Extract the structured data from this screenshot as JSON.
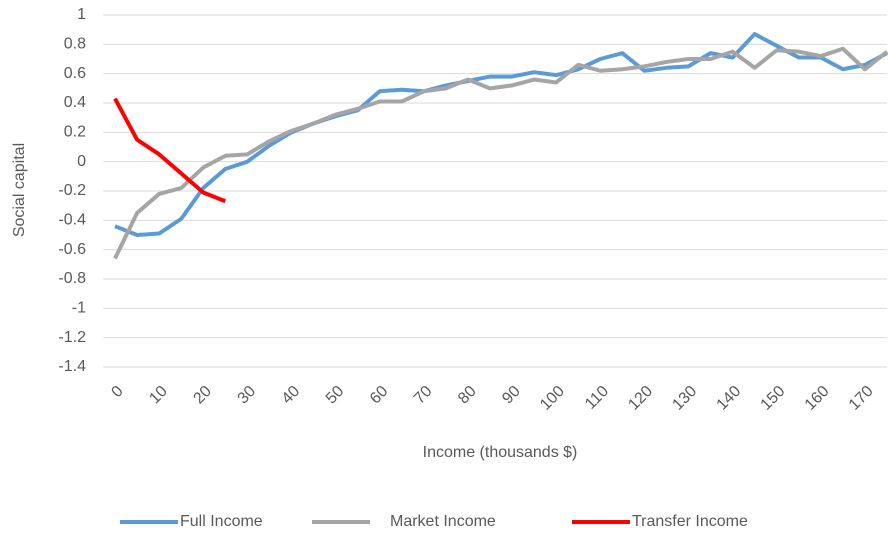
{
  "chart_data": {
    "type": "line",
    "x": [
      0,
      5,
      10,
      15,
      20,
      25,
      30,
      35,
      40,
      45,
      50,
      55,
      60,
      65,
      70,
      75,
      80,
      85,
      90,
      95,
      100,
      105,
      110,
      115,
      120,
      125,
      130,
      135,
      140,
      145,
      150,
      155,
      160,
      165,
      170,
      175
    ],
    "series": [
      {
        "name": "Full Income",
        "color": "#5b9bd5",
        "values": [
          -0.44,
          -0.5,
          -0.49,
          -0.39,
          -0.18,
          -0.05,
          0.0,
          0.11,
          0.2,
          0.26,
          0.31,
          0.35,
          0.48,
          0.49,
          0.48,
          0.52,
          0.55,
          0.58,
          0.58,
          0.61,
          0.59,
          0.63,
          0.7,
          0.74,
          0.62,
          0.64,
          0.65,
          0.74,
          0.71,
          0.87,
          0.79,
          0.71,
          0.71,
          0.63,
          0.66,
          0.74
        ]
      },
      {
        "name": "Market Income",
        "color": "#a5a5a5",
        "values": [
          -0.66,
          -0.35,
          -0.22,
          -0.18,
          -0.04,
          0.04,
          0.05,
          0.14,
          0.21,
          0.26,
          0.32,
          0.36,
          0.41,
          0.41,
          0.48,
          0.5,
          0.56,
          0.5,
          0.52,
          0.56,
          0.54,
          0.66,
          0.62,
          0.63,
          0.65,
          0.68,
          0.7,
          0.7,
          0.75,
          0.64,
          0.76,
          0.75,
          0.72,
          0.77,
          0.63,
          0.75
        ]
      },
      {
        "name": "Transfer Income",
        "color": "#ff0000",
        "values": [
          0.43,
          0.15,
          0.05,
          -0.08,
          -0.21,
          -0.27,
          null,
          null,
          null,
          null,
          null,
          null,
          null,
          null,
          null,
          null,
          null,
          null,
          null,
          null,
          null,
          null,
          null,
          null,
          null,
          null,
          null,
          null,
          null,
          null,
          null,
          null,
          null,
          null,
          null,
          null
        ]
      }
    ],
    "xlim": [
      0,
      175
    ],
    "xticks": [
      0,
      10,
      20,
      30,
      40,
      50,
      60,
      70,
      80,
      90,
      100,
      110,
      120,
      130,
      140,
      150,
      160,
      170
    ],
    "ylim": [
      -1.4,
      1
    ],
    "yticks": [
      1,
      0.8,
      0.6,
      0.4,
      0.2,
      0,
      -0.2,
      -0.4,
      -0.6,
      -0.8,
      -1,
      -1.2,
      -1.4
    ],
    "xlabel": "Income (thousands $)",
    "ylabel": "Social capital",
    "grid": true,
    "legend": "bottom"
  }
}
